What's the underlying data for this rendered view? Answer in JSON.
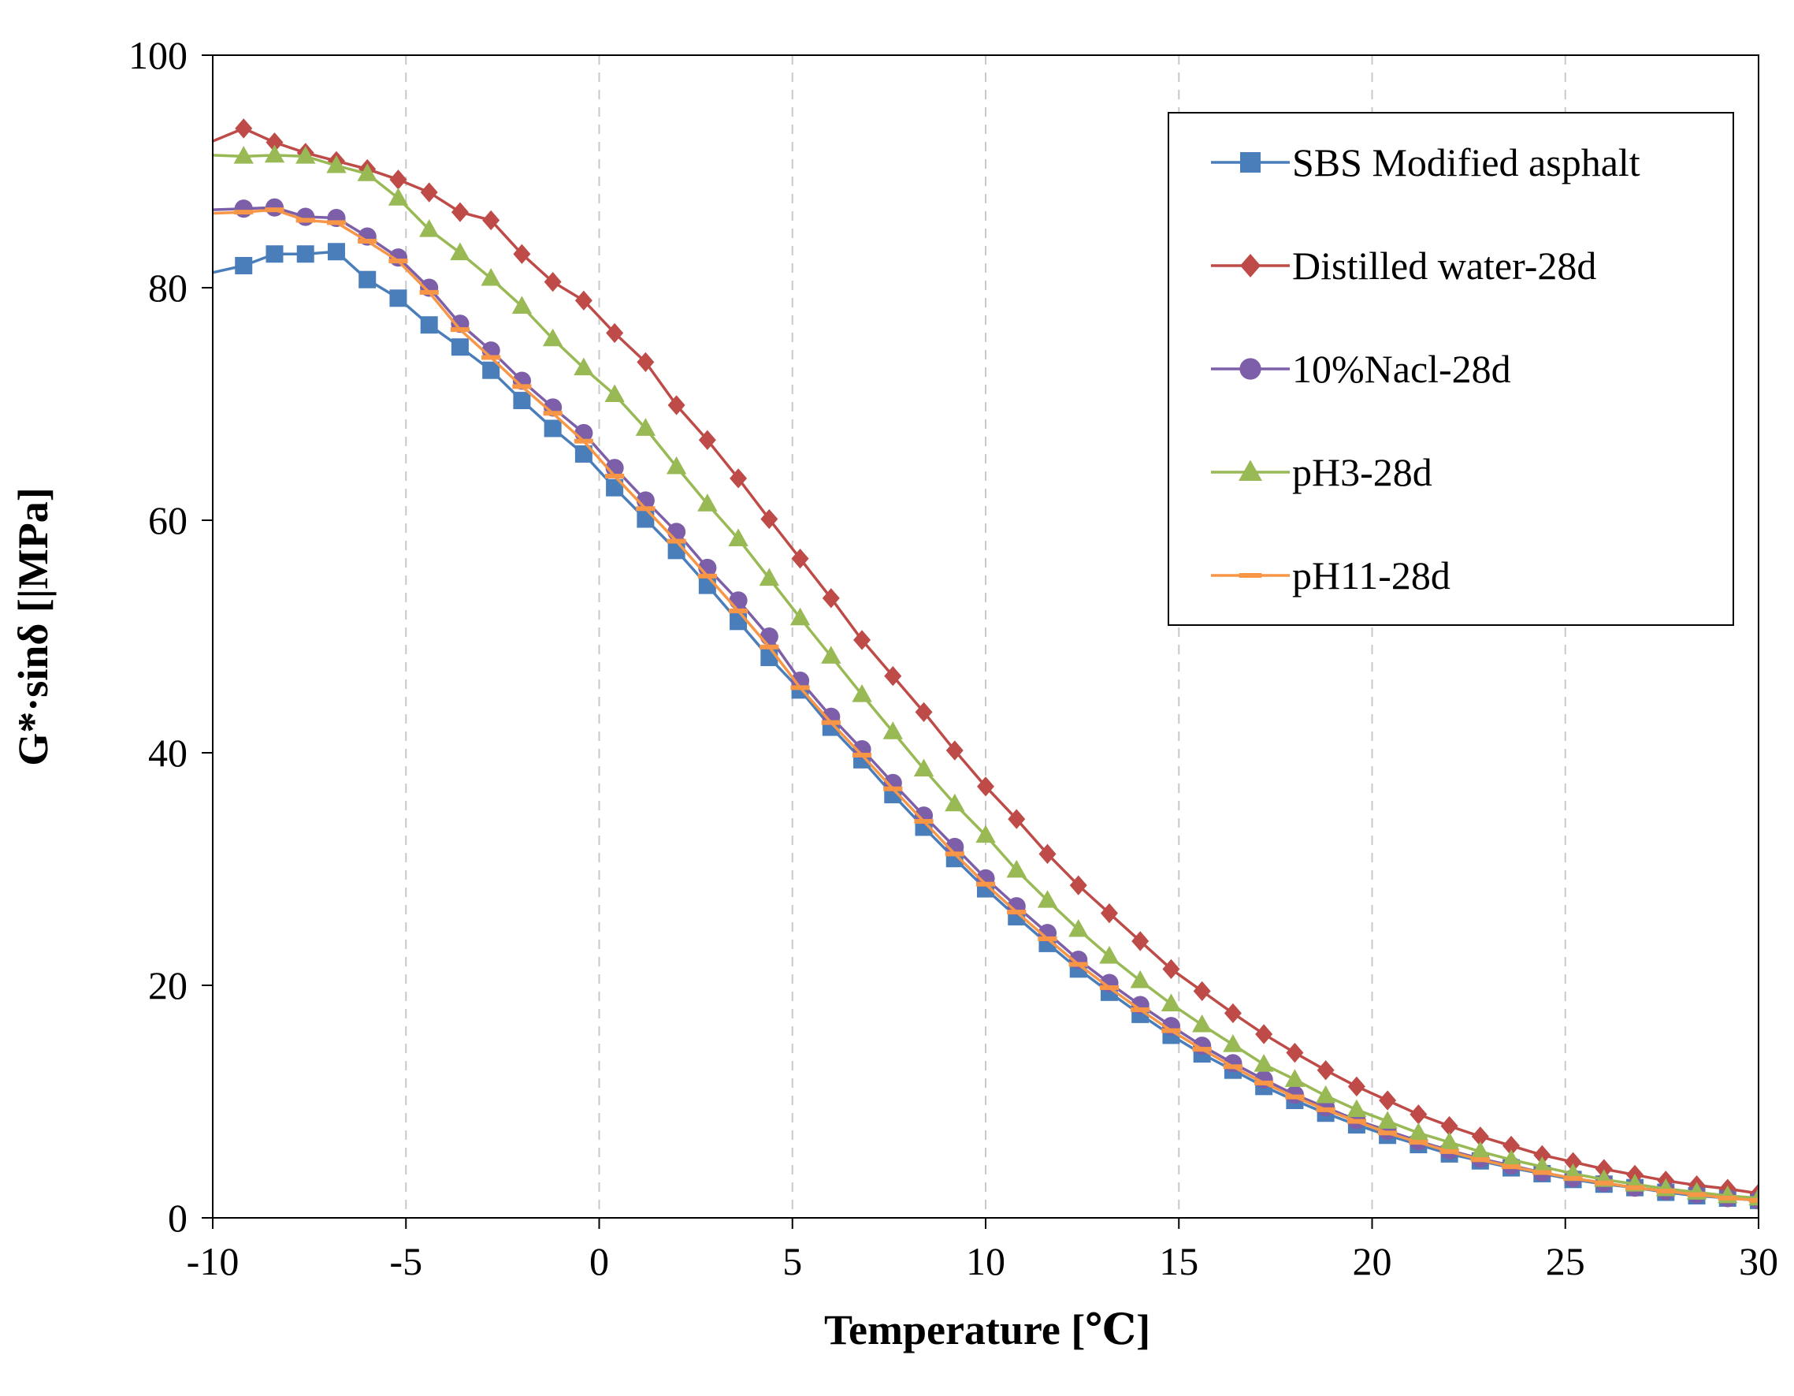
{
  "chart_data": {
    "type": "line",
    "title": "",
    "xlabel": "Temperature [℃]",
    "ylabel": "G*·sinδ [|MPa]",
    "xlim": [
      -10,
      30
    ],
    "ylim": [
      0,
      100
    ],
    "xticks": [
      -10,
      -5,
      0,
      5,
      10,
      15,
      20,
      25,
      30
    ],
    "yticks": [
      0,
      20,
      40,
      60,
      80,
      100
    ],
    "grid": "vertical dashed",
    "legend_position": "top-right",
    "series": [
      {
        "name": "SBS Modified asphalt",
        "color": "#4a7ebb",
        "marker": "square",
        "x": [
          -10,
          -9.2,
          -8.4,
          -7.6,
          -6.8,
          -6.0,
          -5.2,
          -4.4,
          -3.6,
          -2.8,
          -2.0,
          -1.2,
          -0.4,
          0.4,
          1.2,
          2.0,
          2.8,
          3.6,
          4.4,
          5.2,
          6.0,
          6.8,
          7.6,
          8.4,
          9.2,
          10.0,
          10.8,
          11.6,
          12.4,
          13.2,
          14.0,
          14.8,
          15.6,
          16.4,
          17.2,
          18.0,
          18.8,
          19.6,
          20.4,
          21.2,
          22.0,
          22.8,
          23.6,
          24.4,
          25.2,
          26.0,
          26.8,
          27.6,
          28.4,
          29.2,
          30.0
        ],
        "y": [
          81.3,
          81.9,
          82.9,
          82.9,
          83.1,
          80.7,
          79.1,
          76.8,
          74.9,
          72.9,
          70.3,
          67.9,
          65.7,
          62.8,
          60.1,
          57.4,
          54.4,
          51.3,
          48.2,
          45.4,
          42.2,
          39.4,
          36.4,
          33.6,
          30.9,
          28.3,
          25.9,
          23.6,
          21.4,
          19.4,
          17.5,
          15.7,
          14.1,
          12.7,
          11.3,
          10.1,
          9.0,
          8.0,
          7.1,
          6.3,
          5.5,
          4.9,
          4.3,
          3.8,
          3.3,
          2.9,
          2.6,
          2.2,
          1.9,
          1.7,
          1.5
        ]
      },
      {
        "name": "Distilled water-28d",
        "color": "#be4b48",
        "marker": "diamond",
        "x": [
          -10,
          -9.2,
          -8.4,
          -7.6,
          -6.8,
          -6.0,
          -5.2,
          -4.4,
          -3.6,
          -2.8,
          -2.0,
          -1.2,
          -0.4,
          0.4,
          1.2,
          2.0,
          2.8,
          3.6,
          4.4,
          5.2,
          6.0,
          6.8,
          7.6,
          8.4,
          9.2,
          10.0,
          10.8,
          11.6,
          12.4,
          13.2,
          14.0,
          14.8,
          15.6,
          16.4,
          17.2,
          18.0,
          18.8,
          19.6,
          20.4,
          21.2,
          22.0,
          22.8,
          23.6,
          24.4,
          25.2,
          26.0,
          26.8,
          27.6,
          28.4,
          29.2,
          30.0
        ],
        "y": [
          92.6,
          93.7,
          92.5,
          91.6,
          90.9,
          90.2,
          89.3,
          88.2,
          86.5,
          85.8,
          82.9,
          80.5,
          78.9,
          76.1,
          73.6,
          69.9,
          66.9,
          63.6,
          60.1,
          56.7,
          53.3,
          49.7,
          46.6,
          43.5,
          40.2,
          37.1,
          34.3,
          31.3,
          28.6,
          26.2,
          23.8,
          21.4,
          19.5,
          17.6,
          15.8,
          14.2,
          12.7,
          11.3,
          10.1,
          8.9,
          7.9,
          7.0,
          6.2,
          5.4,
          4.8,
          4.2,
          3.7,
          3.2,
          2.8,
          2.5,
          2.1
        ]
      },
      {
        "name": "10%Nacl-28d",
        "color": "#7d5ea8",
        "marker": "circle",
        "x": [
          -10,
          -9.2,
          -8.4,
          -7.6,
          -6.8,
          -6.0,
          -5.2,
          -4.4,
          -3.6,
          -2.8,
          -2.0,
          -1.2,
          -0.4,
          0.4,
          1.2,
          2.0,
          2.8,
          3.6,
          4.4,
          5.2,
          6.0,
          6.8,
          7.6,
          8.4,
          9.2,
          10.0,
          10.8,
          11.6,
          12.4,
          13.2,
          14.0,
          14.8,
          15.6,
          16.4,
          17.2,
          18.0,
          18.8,
          19.6,
          20.4,
          21.2,
          22.0,
          22.8,
          23.6,
          24.4,
          25.2,
          26.0,
          26.8,
          27.6,
          28.4,
          29.2,
          30.0
        ],
        "y": [
          86.7,
          86.8,
          86.9,
          86.1,
          86.0,
          84.4,
          82.6,
          80.0,
          76.9,
          74.6,
          72.0,
          69.7,
          67.5,
          64.5,
          61.7,
          59.0,
          55.9,
          53.1,
          50.0,
          46.2,
          43.1,
          40.3,
          37.4,
          34.6,
          31.9,
          29.2,
          26.8,
          24.5,
          22.2,
          20.2,
          18.3,
          16.5,
          14.8,
          13.3,
          11.9,
          10.6,
          9.5,
          8.4,
          7.5,
          6.6,
          5.8,
          5.1,
          4.5,
          3.9,
          3.4,
          3.0,
          2.6,
          2.3,
          2.0,
          1.7,
          1.5
        ]
      },
      {
        "name": "pH3-28d",
        "color": "#98b954",
        "marker": "triangle",
        "x": [
          -10,
          -9.2,
          -8.4,
          -7.6,
          -6.8,
          -6.0,
          -5.2,
          -4.4,
          -3.6,
          -2.8,
          -2.0,
          -1.2,
          -0.4,
          0.4,
          1.2,
          2.0,
          2.8,
          3.6,
          4.4,
          5.2,
          6.0,
          6.8,
          7.6,
          8.4,
          9.2,
          10.0,
          10.8,
          11.6,
          12.4,
          13.2,
          14.0,
          14.8,
          15.6,
          16.4,
          17.2,
          18.0,
          18.8,
          19.6,
          20.4,
          21.2,
          22.0,
          22.8,
          23.6,
          24.4,
          25.2,
          26.0,
          26.8,
          27.6,
          28.4,
          29.2,
          30.0
        ],
        "y": [
          91.4,
          91.3,
          91.4,
          91.3,
          90.5,
          89.8,
          87.7,
          85.0,
          83.0,
          80.8,
          78.4,
          75.6,
          73.1,
          70.8,
          67.9,
          64.6,
          61.4,
          58.4,
          55.0,
          51.6,
          48.3,
          45.0,
          41.8,
          38.6,
          35.6,
          32.9,
          29.9,
          27.3,
          24.8,
          22.5,
          20.4,
          18.4,
          16.6,
          14.9,
          13.2,
          11.9,
          10.5,
          9.3,
          8.3,
          7.3,
          6.5,
          5.7,
          5.0,
          4.4,
          3.8,
          3.3,
          2.9,
          2.5,
          2.2,
          1.9,
          1.7
        ]
      },
      {
        "name": "pH11-28d",
        "color": "#f79646",
        "marker": "dash",
        "x": [
          -10,
          -9.2,
          -8.4,
          -7.6,
          -6.8,
          -6.0,
          -5.2,
          -4.4,
          -3.6,
          -2.8,
          -2.0,
          -1.2,
          -0.4,
          0.4,
          1.2,
          2.0,
          2.8,
          3.6,
          4.4,
          5.2,
          6.0,
          6.8,
          7.6,
          8.4,
          9.2,
          10.0,
          10.8,
          11.6,
          12.4,
          13.2,
          14.0,
          14.8,
          15.6,
          16.4,
          17.2,
          18.0,
          18.8,
          19.6,
          20.4,
          21.2,
          22.0,
          22.8,
          23.6,
          24.4,
          25.2,
          26.0,
          26.8,
          27.6,
          28.4,
          29.2,
          30.0
        ],
        "y": [
          86.4,
          86.5,
          86.7,
          85.8,
          85.6,
          84.0,
          82.3,
          79.6,
          76.4,
          74.0,
          71.5,
          69.2,
          66.8,
          63.8,
          61.0,
          58.2,
          55.2,
          52.2,
          49.1,
          45.6,
          42.6,
          39.8,
          36.9,
          34.1,
          31.3,
          28.7,
          26.3,
          24.0,
          21.8,
          19.8,
          17.9,
          16.1,
          14.5,
          13.0,
          11.6,
          10.4,
          9.3,
          8.3,
          7.3,
          6.5,
          5.7,
          5.0,
          4.4,
          3.9,
          3.4,
          3.0,
          2.6,
          2.3,
          2.0,
          1.7,
          1.5
        ]
      }
    ]
  }
}
